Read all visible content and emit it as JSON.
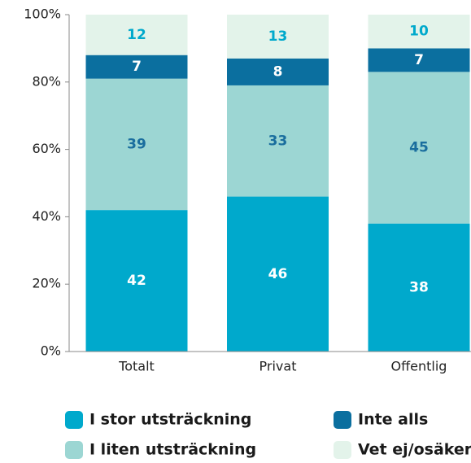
{
  "chart_data": {
    "type": "stacked_bar",
    "categories": [
      "Totalt",
      "Privat",
      "Offentlig"
    ],
    "series": [
      {
        "name": "I stor utsträckning",
        "color": "#00a9cc",
        "values": [
          42,
          46,
          38
        ]
      },
      {
        "name": "I liten utsträckning",
        "color": "#9cd6d3",
        "values": [
          39,
          33,
          45
        ]
      },
      {
        "name": "Inte alls",
        "color": "#0b6f9f",
        "values": [
          7,
          8,
          7
        ]
      },
      {
        "name": "Vet ej/osäker",
        "color": "#e3f3ea",
        "values": [
          12,
          13,
          10
        ]
      }
    ],
    "ylim": [
      0,
      100
    ],
    "yticks": [
      {
        "value": 0,
        "label": "0%"
      },
      {
        "value": 20,
        "label": "20%"
      },
      {
        "value": 40,
        "label": "40%"
      },
      {
        "value": 60,
        "label": "60%"
      },
      {
        "value": 80,
        "label": "80%"
      },
      {
        "value": 100,
        "label": "100%"
      }
    ],
    "grid": false
  }
}
